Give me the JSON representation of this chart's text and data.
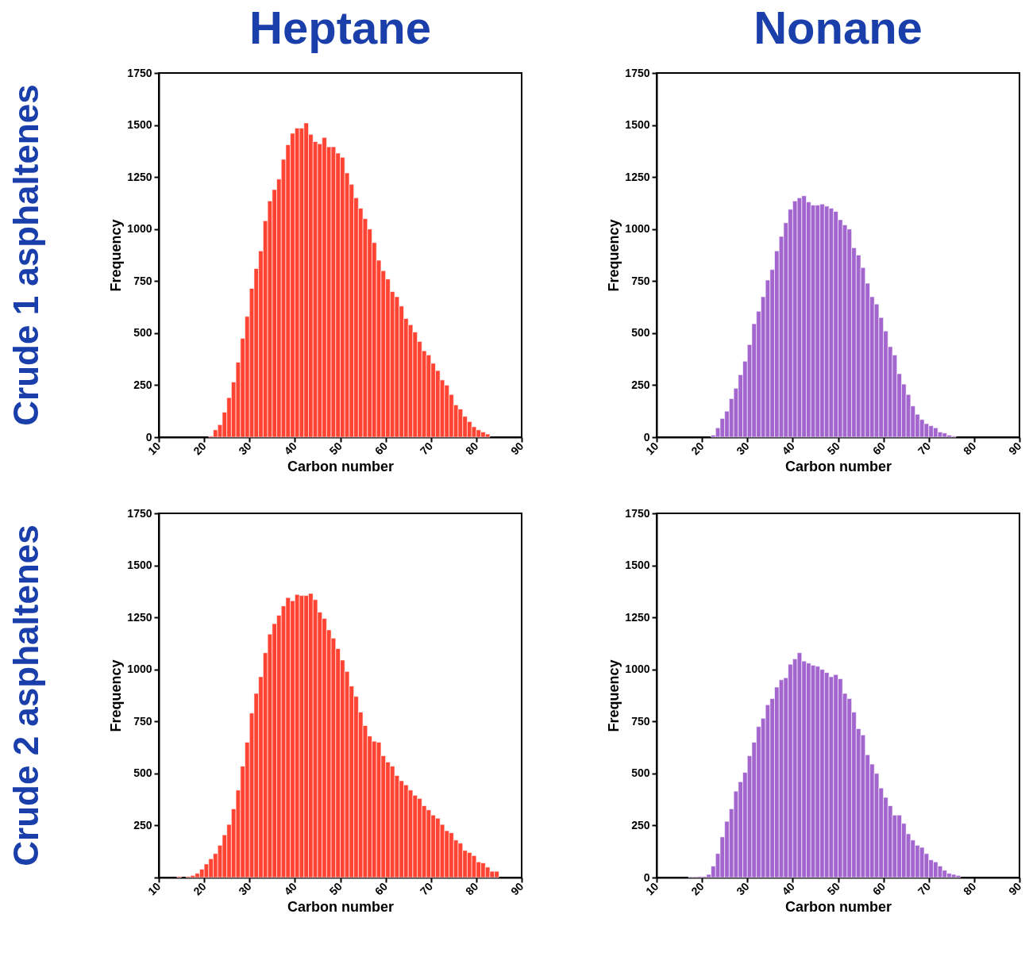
{
  "chart_data": [
    {
      "type": "histogram",
      "title": "Heptane",
      "annotations": [
        "Crude 1 asphaltenes"
      ],
      "xlabel": "Carbon number",
      "ylabel": "Frequency",
      "color": "#ff4433",
      "xlim": [
        10,
        90
      ],
      "xticks": [
        10,
        20,
        30,
        40,
        50,
        60,
        70,
        80,
        90
      ],
      "ylim": [
        0,
        1750
      ],
      "yticks": [
        0,
        250,
        500,
        750,
        1000,
        1250,
        1500,
        1750
      ],
      "bins": [
        21,
        22,
        23,
        24,
        25,
        26,
        27,
        28,
        29,
        30,
        31,
        32,
        33,
        34,
        35,
        36,
        37,
        38,
        39,
        40,
        41,
        42,
        43,
        44,
        45,
        46,
        47,
        48,
        49,
        50,
        51,
        52,
        53,
        54,
        55,
        56,
        57,
        58,
        59,
        60,
        61,
        62,
        63,
        64,
        65,
        66,
        67,
        68,
        69,
        70,
        71,
        72,
        73,
        74,
        75,
        76,
        77,
        78,
        79,
        80,
        81,
        82,
        83
      ],
      "values": [
        5,
        35,
        60,
        120,
        190,
        265,
        360,
        475,
        580,
        715,
        810,
        895,
        1040,
        1135,
        1190,
        1240,
        1335,
        1405,
        1460,
        1485,
        1485,
        1510,
        1455,
        1420,
        1410,
        1440,
        1395,
        1395,
        1365,
        1345,
        1270,
        1215,
        1150,
        1100,
        1050,
        1000,
        935,
        850,
        800,
        760,
        700,
        675,
        630,
        570,
        540,
        505,
        460,
        415,
        395,
        355,
        320,
        275,
        250,
        205,
        155,
        135,
        100,
        75,
        50,
        35,
        25,
        15
      ]
    },
    {
      "type": "histogram",
      "title": "Nonane",
      "xlabel": "Carbon number",
      "ylabel": "Frequency",
      "color": "#a366cf",
      "xlim": [
        10,
        90
      ],
      "xticks": [
        10,
        20,
        30,
        40,
        50,
        60,
        70,
        80,
        90
      ],
      "ylim": [
        0,
        1750
      ],
      "yticks": [
        0,
        250,
        500,
        750,
        1000,
        1250,
        1500,
        1750
      ],
      "bins": [
        22,
        23,
        24,
        25,
        26,
        27,
        28,
        29,
        30,
        31,
        32,
        33,
        34,
        35,
        36,
        37,
        38,
        39,
        40,
        41,
        42,
        43,
        44,
        45,
        46,
        47,
        48,
        49,
        50,
        51,
        52,
        53,
        54,
        55,
        56,
        57,
        58,
        59,
        60,
        61,
        62,
        63,
        64,
        65,
        66,
        67,
        68,
        69,
        70,
        71,
        72,
        73,
        74,
        75,
        76
      ],
      "values": [
        10,
        45,
        90,
        125,
        185,
        235,
        300,
        365,
        445,
        545,
        605,
        675,
        755,
        805,
        895,
        965,
        1030,
        1095,
        1135,
        1150,
        1160,
        1130,
        1115,
        1115,
        1120,
        1110,
        1100,
        1085,
        1045,
        1020,
        1000,
        910,
        875,
        815,
        740,
        675,
        640,
        575,
        510,
        435,
        395,
        305,
        255,
        205,
        150,
        110,
        85,
        65,
        55,
        45,
        25,
        20,
        10,
        5
      ]
    },
    {
      "type": "histogram",
      "annotations": [
        "Crude 2 asphaltenes"
      ],
      "xlabel": "Carbon number",
      "ylabel": "Frequency",
      "color": "#ff4433",
      "xlim": [
        10,
        90
      ],
      "xticks": [
        10,
        20,
        30,
        40,
        50,
        60,
        70,
        80,
        90
      ],
      "ylim": [
        0,
        1750
      ],
      "yticks": [
        {
          "value": 0,
          "label": null
        },
        250,
        500,
        750,
        1000,
        1250,
        1500,
        1750
      ],
      "bins": [
        14,
        15,
        16,
        17,
        18,
        19,
        20,
        21,
        22,
        23,
        24,
        25,
        26,
        27,
        28,
        29,
        30,
        31,
        32,
        33,
        34,
        35,
        36,
        37,
        38,
        39,
        40,
        41,
        42,
        43,
        44,
        45,
        46,
        47,
        48,
        49,
        50,
        51,
        52,
        53,
        54,
        55,
        56,
        57,
        58,
        59,
        60,
        61,
        62,
        63,
        64,
        65,
        66,
        67,
        68,
        69,
        70,
        71,
        72,
        73,
        74,
        75,
        76,
        77,
        78,
        79,
        80,
        81,
        82,
        83,
        84,
        85
      ],
      "values": [
        5,
        null,
        5,
        10,
        20,
        40,
        65,
        90,
        115,
        155,
        205,
        255,
        330,
        420,
        535,
        650,
        790,
        885,
        965,
        1080,
        1170,
        1220,
        1260,
        1305,
        1345,
        1330,
        1360,
        1355,
        1355,
        1365,
        1335,
        1275,
        1245,
        1190,
        1150,
        1100,
        1045,
        990,
        920,
        870,
        795,
        730,
        680,
        655,
        650,
        585,
        555,
        535,
        490,
        465,
        445,
        420,
        395,
        380,
        345,
        325,
        300,
        285,
        255,
        225,
        215,
        180,
        165,
        130,
        120,
        105,
        75,
        70,
        50,
        30,
        30
      ]
    },
    {
      "type": "histogram",
      "xlabel": "Carbon number",
      "ylabel": "Frequency",
      "color": "#a366cf",
      "xlim": [
        10,
        90
      ],
      "xticks": [
        10,
        20,
        30,
        40,
        50,
        60,
        70,
        80,
        90
      ],
      "ylim": [
        0,
        1750
      ],
      "yticks": [
        0,
        250,
        500,
        750,
        1000,
        1250,
        1500,
        1750
      ],
      "bins": [
        17,
        18,
        19,
        20,
        21,
        22,
        23,
        24,
        25,
        26,
        27,
        28,
        29,
        30,
        31,
        32,
        33,
        34,
        35,
        36,
        37,
        38,
        39,
        40,
        41,
        42,
        43,
        44,
        45,
        46,
        47,
        48,
        49,
        50,
        51,
        52,
        53,
        54,
        55,
        56,
        57,
        58,
        59,
        60,
        61,
        62,
        63,
        64,
        65,
        66,
        67,
        68,
        69,
        70,
        71,
        72,
        73,
        74,
        75,
        76,
        77
      ],
      "values": [
        3,
        3,
        5,
        5,
        15,
        55,
        115,
        195,
        270,
        330,
        415,
        460,
        505,
        585,
        650,
        725,
        765,
        830,
        860,
        915,
        950,
        960,
        1025,
        1050,
        1080,
        1040,
        1030,
        1020,
        1015,
        1000,
        985,
        965,
        975,
        955,
        885,
        860,
        795,
        715,
        685,
        590,
        545,
        500,
        430,
        385,
        345,
        300,
        300,
        260,
        210,
        180,
        155,
        145,
        115,
        85,
        75,
        55,
        35,
        20,
        15,
        10
      ]
    }
  ]
}
